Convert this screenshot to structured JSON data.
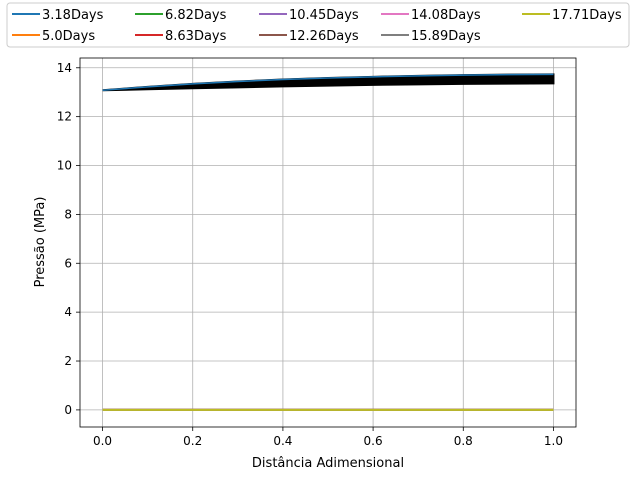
{
  "chart_data": {
    "type": "line",
    "title": "",
    "xlabel": "Distância Adimensional",
    "ylabel": "Pressão (MPa)",
    "xlim": [
      -0.05,
      1.05
    ],
    "ylim": [
      -0.7,
      14.4
    ],
    "xticks": [
      0.0,
      0.2,
      0.4,
      0.6,
      0.8,
      1.0
    ],
    "xtick_labels": [
      "0.0",
      "0.2",
      "0.4",
      "0.6",
      "0.8",
      "1.0"
    ],
    "yticks": [
      0,
      2,
      4,
      6,
      8,
      10,
      12,
      14
    ],
    "ytick_labels": [
      "0",
      "2",
      "4",
      "6",
      "8",
      "10",
      "12",
      "14"
    ],
    "grid": true,
    "legend_position": "top",
    "legend_columns": 5,
    "series": [
      {
        "name": "3.18Days",
        "color": "#1f77b4",
        "x": [
          0,
          1
        ],
        "y": [
          0,
          0
        ]
      },
      {
        "name": "5.0Days",
        "color": "#ff7f0e",
        "x": [
          0,
          1
        ],
        "y": [
          0,
          0
        ]
      },
      {
        "name": "6.82Days",
        "color": "#2ca02c",
        "x": [
          0,
          1
        ],
        "y": [
          0,
          0
        ]
      },
      {
        "name": "8.63Days",
        "color": "#d62728",
        "x": [
          0,
          1
        ],
        "y": [
          0,
          0
        ]
      },
      {
        "name": "10.45Days",
        "color": "#9467bd",
        "x": [
          0,
          1
        ],
        "y": [
          0,
          0
        ]
      },
      {
        "name": "12.26Days",
        "color": "#8c564b",
        "x": [
          0,
          1
        ],
        "y": [
          0,
          0
        ]
      },
      {
        "name": "14.08Days",
        "color": "#e377c2",
        "x": [
          0,
          1
        ],
        "y": [
          0,
          0
        ]
      },
      {
        "name": "15.89Days",
        "color": "#7f7f7f",
        "x": [
          0,
          1
        ],
        "y": [
          0,
          0
        ]
      },
      {
        "name": "17.71Days",
        "color": "#bcbd22",
        "x": [
          0,
          1
        ],
        "y": [
          0,
          0
        ]
      }
    ],
    "top_band": {
      "color": "#000000",
      "edge_color": "#1f77b4",
      "x": [
        0.0,
        0.1,
        0.2,
        0.3,
        0.4,
        0.5,
        0.6,
        0.7,
        0.8,
        0.9,
        1.0
      ],
      "y_upper": [
        13.08,
        13.22,
        13.34,
        13.44,
        13.52,
        13.58,
        13.63,
        13.67,
        13.7,
        13.72,
        13.73
      ],
      "y_lower": [
        13.08,
        13.12,
        13.16,
        13.2,
        13.24,
        13.27,
        13.3,
        13.32,
        13.34,
        13.35,
        13.36
      ]
    }
  }
}
